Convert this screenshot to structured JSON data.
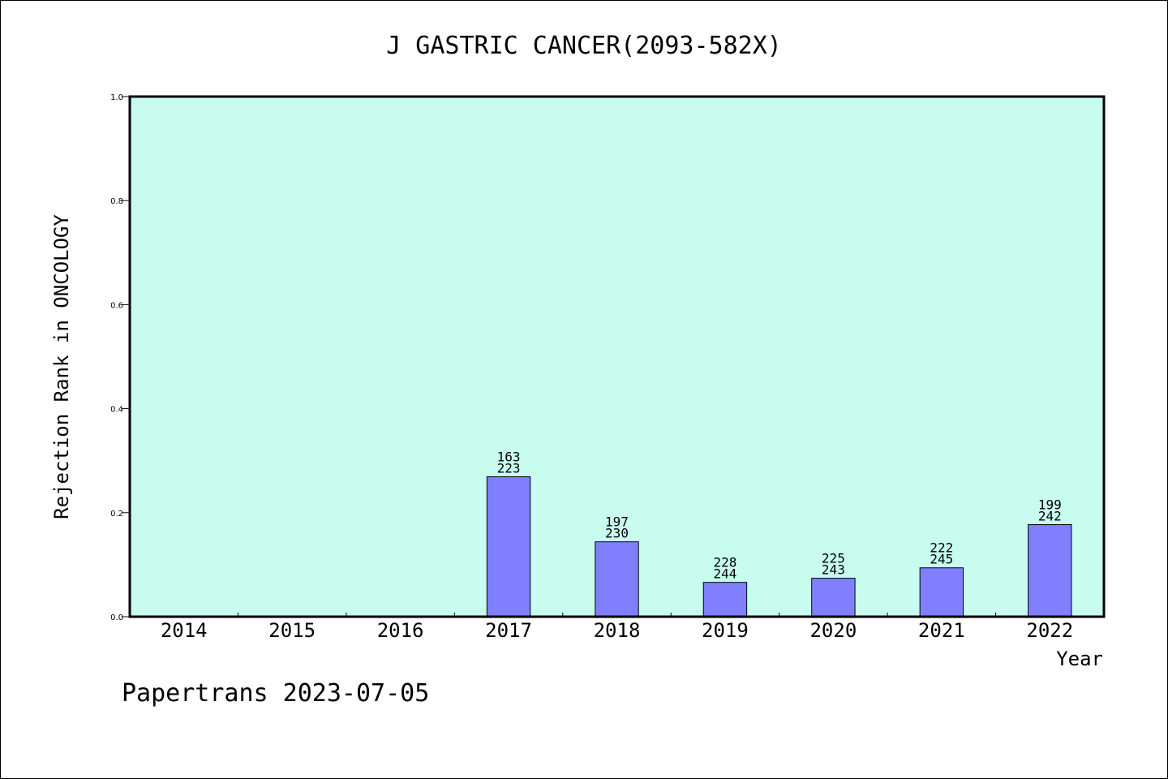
{
  "chart_data": {
    "type": "bar",
    "title": "J GASTRIC CANCER(2093-582X)",
    "xlabel": "Year",
    "ylabel": "Rejection Rank in ONCOLOGY",
    "ylim": [
      0,
      1.0
    ],
    "yticks": [
      0.0,
      0.2,
      0.4,
      0.6,
      0.8,
      1.0
    ],
    "ytick_labels": [
      "0.0",
      "0.2",
      "0.4",
      "0.6",
      "0.8",
      "1.0"
    ],
    "categories": [
      "2014",
      "2015",
      "2016",
      "2017",
      "2018",
      "2019",
      "2020",
      "2021",
      "2022"
    ],
    "values": [
      null,
      null,
      null,
      0.269,
      0.144,
      0.066,
      0.074,
      0.094,
      0.177
    ],
    "labels_top": [
      "",
      "",
      "",
      "163",
      "197",
      "228",
      "225",
      "222",
      "199"
    ],
    "labels_bottom": [
      "",
      "",
      "",
      "223",
      "230",
      "244",
      "243",
      "245",
      "242"
    ],
    "grid": false,
    "colors": {
      "plot_background": "#c8fcee",
      "bar_fill": "#8080ff",
      "bar_stroke": "#000000",
      "axis": "#000000"
    }
  },
  "footer": "Papertrans 2023-07-05"
}
